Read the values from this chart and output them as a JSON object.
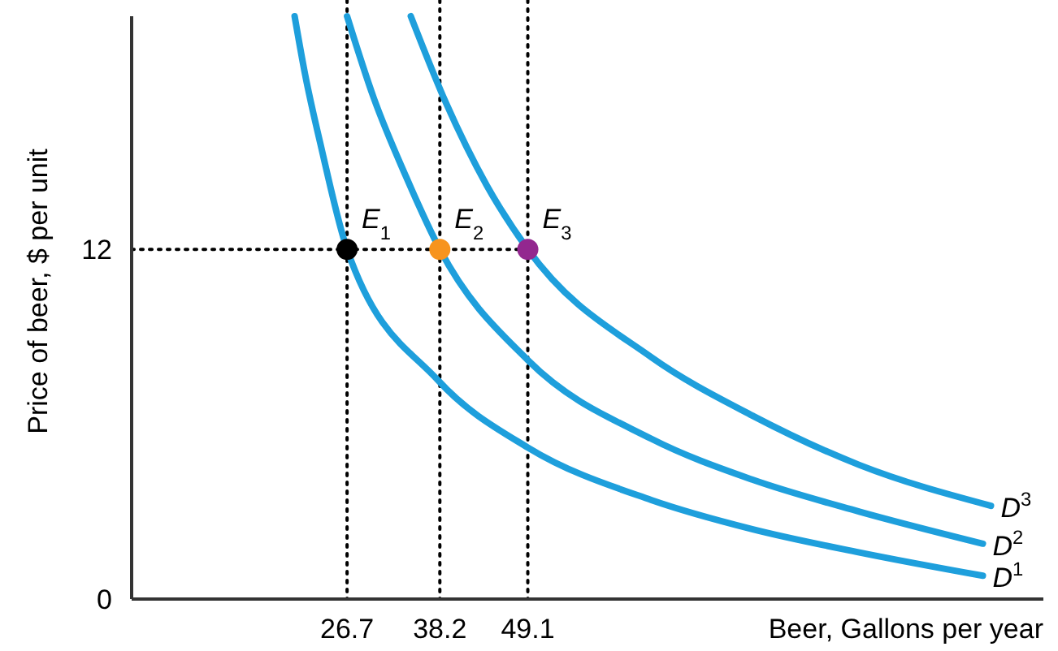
{
  "chart_data": {
    "type": "line",
    "xlabel": "Beer, Gallons per year",
    "ylabel": "Price of beer, $ per unit",
    "xlim": [
      0,
      113
    ],
    "ylim": [
      0,
      20
    ],
    "xticks": [
      26.7,
      38.2,
      49.1
    ],
    "yticks": [
      0,
      12
    ],
    "grid": false,
    "marker": "none",
    "series": [
      {
        "name": "D$^{1}$",
        "color": "#1e9fdc",
        "x": [
          20.2,
          21.5,
          23.5,
          26.7,
          38.0,
          49.1,
          64.4,
          76.9,
          90.2,
          105.5
        ],
        "values": [
          20,
          18,
          15.5,
          12,
          7.5,
          5.2,
          3.4,
          2.4,
          1.6,
          0.8
        ]
      },
      {
        "name": "D$^{2}$",
        "color": "#1e9fdc",
        "x": [
          26.7,
          30,
          34,
          38.2,
          49.1,
          64.4,
          76.9,
          90.2,
          105.5
        ],
        "values": [
          20,
          17.2,
          14.5,
          12,
          8.2,
          5.5,
          4.1,
          3.0,
          1.9
        ]
      },
      {
        "name": "D$^{3}$",
        "color": "#1e9fdc",
        "x": [
          34.6,
          39,
          44,
          49.1,
          64.4,
          76.9,
          90.2,
          106.5
        ],
        "values": [
          20,
          17,
          14.2,
          12,
          8.3,
          6.3,
          4.6,
          3.2
        ]
      },
      {
        "type": "line",
        "color": "#000000",
        "line_style": "dotted",
        "x": [
          0,
          49.1
        ],
        "values": [
          12,
          12
        ]
      },
      {
        "type": "scatter",
        "name": "E$_{1}$",
        "color": "#000000",
        "marker": "circle",
        "x": [
          26.7
        ],
        "values": [
          12
        ]
      },
      {
        "type": "scatter",
        "name": "E$_{2}$",
        "color": "#f7941d",
        "marker": "circle",
        "x": [
          38.2
        ],
        "values": [
          12
        ]
      },
      {
        "type": "scatter",
        "name": "E$_{3}$",
        "color": "#93278f",
        "marker": "circle",
        "x": [
          49.1
        ],
        "values": [
          12
        ]
      }
    ],
    "ref_lines": [
      {
        "axis": "x",
        "value": 26.7,
        "color": "#000000",
        "line_style": "dotted"
      },
      {
        "axis": "x",
        "value": 38.2,
        "color": "#000000",
        "line_style": "dotted"
      },
      {
        "axis": "x",
        "value": 49.1,
        "color": "#000000",
        "line_style": "dotted"
      }
    ]
  }
}
